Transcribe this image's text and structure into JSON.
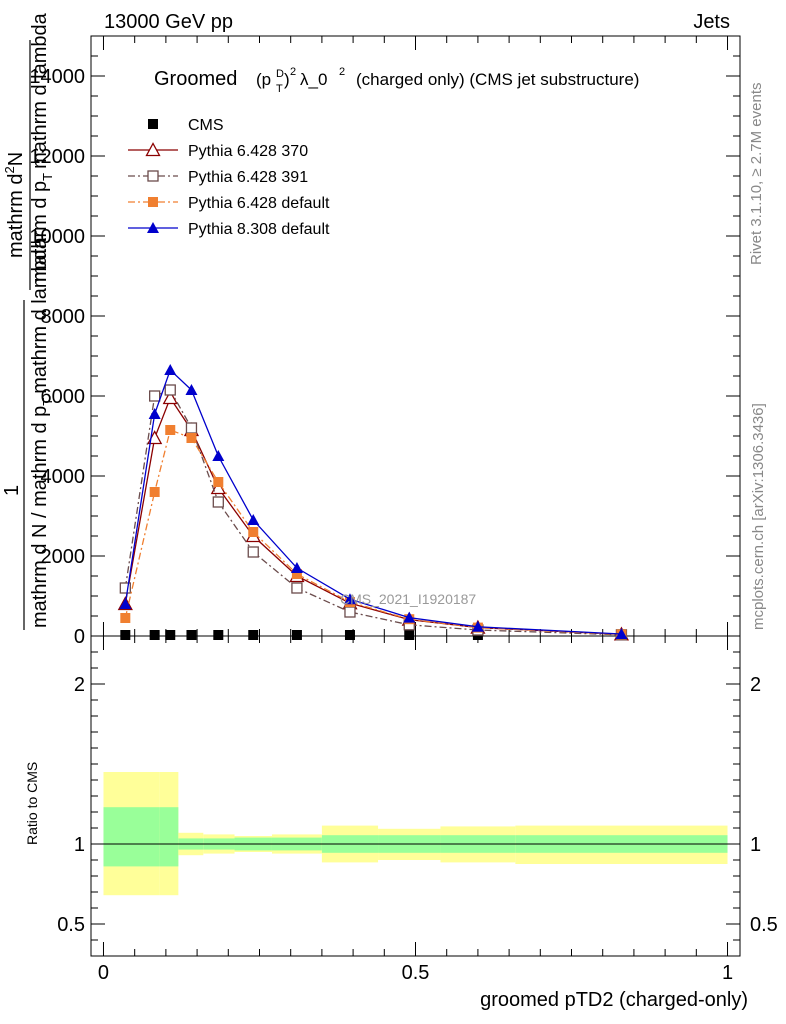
{
  "header": {
    "left": "13000 GeV pp",
    "right": "Jets"
  },
  "side_labels": {
    "rivet": "Rivet 3.1.10, ≥ 2.7M events",
    "mcplots": "mcplots.cern.ch [arXiv:1306.3436]"
  },
  "watermark": "CMS_2021_I1920187",
  "chart_data": [
    {
      "type": "line",
      "title_main": "Groomed",
      "title_sym_base": "(p",
      "title_sym_sup": "D",
      "title_sym_sub": "T",
      "title_sym_close": ")",
      "title_sym_exp": "2",
      "title_lambda": "λ_0",
      "title_lambda_exp": "2",
      "title_rest": "(charged only) (CMS jet substructure)",
      "ylabel_top_frac": "1",
      "ylabel_bottom": "mathrm d N / mathrm d p",
      "ylabel_bottom_sub": "T",
      "ylabel_bottom_rest": "mathrm d lambda",
      "ylabel_numerator": "mathrm d",
      "ylabel_numerator_exp": "2",
      "ylabel_numerator_n": "N",
      "ylabel_denominator": "mathrm d p",
      "ylabel_denominator_sub": "T",
      "ylabel_denominator_rest": "mathrm d lambda",
      "ylim": [
        0,
        15000
      ],
      "xlim": [
        -0.02,
        1.02
      ],
      "yticks": [
        0,
        2000,
        4000,
        6000,
        8000,
        10000,
        12000,
        14000
      ],
      "ytick_labels": [
        "0",
        "2000",
        "4000",
        "6000",
        "8000",
        "10000",
        "12000",
        "14000"
      ],
      "legend_position": "top-left",
      "series": [
        {
          "name": "CMS",
          "color": "#000000",
          "marker": "square-filled",
          "line": "none",
          "x": [
            0.035,
            0.082,
            0.107,
            0.141,
            0.184,
            0.24,
            0.31,
            0.395,
            0.49,
            0.6,
            0.83
          ],
          "y": [
            25,
            25,
            25,
            25,
            25,
            25,
            25,
            25,
            25,
            25,
            25
          ]
        },
        {
          "name": "Pythia 6.428 370",
          "color": "#8b0000",
          "marker": "triangle-open",
          "line": "solid",
          "x": [
            0.035,
            0.082,
            0.107,
            0.141,
            0.184,
            0.24,
            0.31,
            0.395,
            0.49,
            0.6,
            0.83
          ],
          "y": [
            800,
            4950,
            5950,
            5150,
            3700,
            2500,
            1500,
            820,
            410,
            210,
            40
          ]
        },
        {
          "name": "Pythia 6.428 391",
          "color": "#6b4c4c",
          "marker": "square-open",
          "line": "dashdot",
          "x": [
            0.035,
            0.082,
            0.107,
            0.141,
            0.184,
            0.24,
            0.31,
            0.395,
            0.49,
            0.6,
            0.83
          ],
          "y": [
            1200,
            6000,
            6150,
            5200,
            3350,
            2100,
            1200,
            600,
            280,
            150,
            30
          ]
        },
        {
          "name": "Pythia 6.428 default",
          "color": "#f07f30",
          "marker": "square-filled",
          "line": "dashdot",
          "x": [
            0.035,
            0.082,
            0.107,
            0.141,
            0.184,
            0.24,
            0.31,
            0.395,
            0.49,
            0.6,
            0.83
          ],
          "y": [
            450,
            3600,
            5150,
            4950,
            3850,
            2600,
            1550,
            850,
            420,
            210,
            40
          ]
        },
        {
          "name": "Pythia 8.308 default",
          "color": "#0000cc",
          "marker": "triangle-filled",
          "line": "solid",
          "x": [
            0.035,
            0.082,
            0.107,
            0.141,
            0.184,
            0.24,
            0.31,
            0.395,
            0.49,
            0.6,
            0.83
          ],
          "y": [
            800,
            5550,
            6650,
            6150,
            4500,
            2900,
            1700,
            920,
            460,
            230,
            50
          ]
        }
      ]
    },
    {
      "type": "area",
      "ylabel": "Ratio to CMS",
      "xlabel": "groomed pTD2 (charged-only)",
      "xlim": [
        -0.02,
        1.02
      ],
      "ylim": [
        0.3,
        2.3
      ],
      "xticks": [
        0,
        0.5,
        1
      ],
      "xtick_labels": [
        "0",
        "0.5",
        "1"
      ],
      "yticks": [
        0.5,
        1,
        2
      ],
      "ytick_labels": [
        "0.5",
        "1",
        "2"
      ],
      "bin_edges": [
        0,
        0.09,
        0.12,
        0.16,
        0.21,
        0.27,
        0.35,
        0.44,
        0.54,
        0.66,
        1.0
      ],
      "band_inner_low": [
        0.86,
        0.86,
        0.965,
        0.965,
        0.96,
        0.96,
        0.945,
        0.945,
        0.945,
        0.945
      ],
      "band_inner_high": [
        1.23,
        1.23,
        1.035,
        1.035,
        1.04,
        1.04,
        1.055,
        1.055,
        1.055,
        1.055
      ],
      "band_outer_low": [
        0.68,
        0.68,
        0.93,
        0.94,
        0.95,
        0.94,
        0.885,
        0.9,
        0.885,
        0.875
      ],
      "band_outer_high": [
        1.45,
        1.45,
        1.07,
        1.06,
        1.05,
        1.06,
        1.115,
        1.095,
        1.11,
        1.115
      ],
      "band_inner_color": "#99ff99",
      "band_outer_color": "#ffff99",
      "reference": 1
    }
  ]
}
